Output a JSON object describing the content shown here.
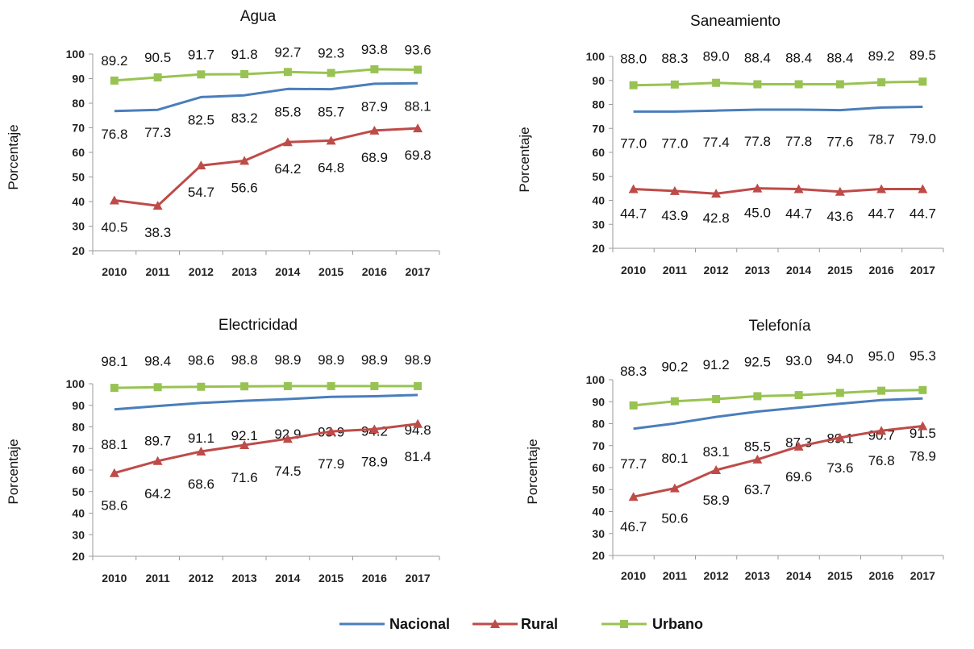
{
  "colors": {
    "Nacional": "#4a7ebb",
    "Rural": "#be4b48",
    "Urbano": "#98c353"
  },
  "legend": {
    "position": "bottom-center",
    "items": [
      {
        "name": "Nacional",
        "marker": "none"
      },
      {
        "name": "Rural",
        "marker": "triangle"
      },
      {
        "name": "Urbano",
        "marker": "square"
      }
    ]
  },
  "chart_data": [
    {
      "type": "line",
      "title": "Agua",
      "ylabel": "Porcentaje",
      "ylim": [
        20,
        100
      ],
      "yticks": [
        20,
        30,
        40,
        50,
        60,
        70,
        80,
        90,
        100
      ],
      "x": [
        "2010",
        "2011",
        "2012",
        "2013",
        "2014",
        "2015",
        "2016",
        "2017"
      ],
      "series": [
        {
          "name": "Urbano",
          "values": [
            89.2,
            90.5,
            91.7,
            91.8,
            92.7,
            92.3,
            93.8,
            93.6
          ]
        },
        {
          "name": "Nacional",
          "values": [
            76.8,
            77.3,
            82.5,
            83.2,
            85.8,
            85.7,
            87.9,
            88.1
          ]
        },
        {
          "name": "Rural",
          "values": [
            40.5,
            38.3,
            54.7,
            56.6,
            64.2,
            64.8,
            68.9,
            69.8
          ]
        }
      ]
    },
    {
      "type": "line",
      "title": "Saneamiento",
      "ylabel": "Porcentaje",
      "ylim": [
        20,
        100
      ],
      "yticks": [
        20,
        30,
        40,
        50,
        60,
        70,
        80,
        90,
        100
      ],
      "x": [
        "2010",
        "2011",
        "2012",
        "2013",
        "2014",
        "2015",
        "2016",
        "2017"
      ],
      "series": [
        {
          "name": "Urbano",
          "values": [
            88.0,
            88.3,
            89.0,
            88.4,
            88.4,
            88.4,
            89.2,
            89.5
          ]
        },
        {
          "name": "Nacional",
          "values": [
            77.0,
            77.0,
            77.4,
            77.8,
            77.8,
            77.6,
            78.7,
            79.0
          ]
        },
        {
          "name": "Rural",
          "values": [
            44.7,
            43.9,
            42.8,
            45.0,
            44.7,
            43.6,
            44.7,
            44.7
          ]
        }
      ]
    },
    {
      "type": "line",
      "title": "Electricidad",
      "ylabel": "Porcentaje",
      "ylim": [
        20,
        100
      ],
      "yticks": [
        20,
        30,
        40,
        50,
        60,
        70,
        80,
        90,
        100
      ],
      "x": [
        "2010",
        "2011",
        "2012",
        "2013",
        "2014",
        "2015",
        "2016",
        "2017"
      ],
      "series": [
        {
          "name": "Urbano",
          "values": [
            98.1,
            98.4,
            98.6,
            98.8,
            98.9,
            98.9,
            98.9,
            98.9
          ]
        },
        {
          "name": "Nacional",
          "values": [
            88.1,
            89.7,
            91.1,
            92.1,
            92.9,
            93.9,
            94.2,
            94.8
          ]
        },
        {
          "name": "Rural",
          "values": [
            58.6,
            64.2,
            68.6,
            71.6,
            74.5,
            77.9,
            78.9,
            81.4
          ]
        }
      ]
    },
    {
      "type": "line",
      "title": "Telefonía",
      "ylabel": "Porcentaje",
      "ylim": [
        20,
        100
      ],
      "yticks": [
        20,
        30,
        40,
        50,
        60,
        70,
        80,
        90,
        100
      ],
      "x": [
        "2010",
        "2011",
        "2012",
        "2013",
        "2014",
        "2015",
        "2016",
        "2017"
      ],
      "series": [
        {
          "name": "Urbano",
          "values": [
            88.3,
            90.2,
            91.2,
            92.5,
            93.0,
            94.0,
            95.0,
            95.3
          ]
        },
        {
          "name": "Nacional",
          "values": [
            77.7,
            80.1,
            83.1,
            85.5,
            87.3,
            89.1,
            90.7,
            91.5
          ]
        },
        {
          "name": "Rural",
          "values": [
            46.7,
            50.6,
            58.9,
            63.7,
            69.6,
            73.6,
            76.8,
            78.9
          ]
        }
      ]
    }
  ]
}
